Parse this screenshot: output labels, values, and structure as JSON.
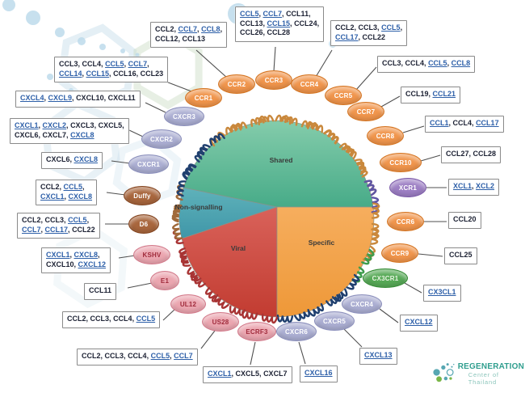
{
  "pie": {
    "sections": [
      {
        "id": "shared",
        "label": "Shared",
        "color_top": "#84ccab",
        "color_bottom": "#47ab88"
      },
      {
        "id": "non_signalling",
        "label": "Non-signalling",
        "color_top": "#5fb2ba",
        "color_bottom": "#3f96a8"
      },
      {
        "id": "viral",
        "label": "Viral",
        "color_top": "#d9625a",
        "color_bottom": "#c23c31"
      },
      {
        "id": "specific",
        "label": "Specific",
        "color_top": "#f6ae5e",
        "color_bottom": "#ee9838"
      }
    ],
    "label_color": "#3a3a3a"
  },
  "families": {
    "cc": {
      "coil": "#c9883c",
      "fill": "#f0954c",
      "stroke": "#d4731f",
      "text": "#ffffff"
    },
    "cxc": {
      "coil": "#20406f",
      "fill": "#abaed2",
      "stroke": "#8b8fbc",
      "text": "#ffffff"
    },
    "xc": {
      "coil": "#5f55a5",
      "fill": "#9d7fc4",
      "stroke": "#7b59a9",
      "text": "#ffffff"
    },
    "cx3c": {
      "coil": "#3e9c4c",
      "fill": "#57a957",
      "stroke": "#338b33",
      "text": "#e9f5e3"
    },
    "atypical": {
      "coil": "#a06a3a",
      "fill": "#a8663d",
      "stroke": "#83441f",
      "text": "#ffffff"
    },
    "viral": {
      "coil": "#a83434",
      "fill": "#eba6b0",
      "stroke": "#d2798a",
      "text": "#a02c3c"
    }
  },
  "link_color": "#2d5fa8",
  "receptors": [
    {
      "id": "ccr1",
      "label": "CCR1",
      "family": "cc",
      "rows": [
        [
          {
            "n": "CCL3",
            "u": 0
          },
          {
            "n": "CCL4",
            "u": 0
          },
          {
            "n": "CCL5",
            "u": 1
          },
          {
            "n": "CCL7",
            "u": 1
          }
        ],
        [
          {
            "n": "CCL14",
            "u": 1
          },
          {
            "n": "CCL15",
            "u": 1
          },
          {
            "n": "CCL16",
            "u": 0
          },
          {
            "n": "CCL23",
            "u": 0
          }
        ]
      ]
    },
    {
      "id": "ccr2",
      "label": "CCR2",
      "family": "cc",
      "rows": [
        [
          {
            "n": "CCL2",
            "u": 0
          },
          {
            "n": "CCL7",
            "u": 1
          },
          {
            "n": "CCL8",
            "u": 1
          }
        ],
        [
          {
            "n": "CCL12",
            "u": 0
          },
          {
            "n": "CCL13",
            "u": 0
          }
        ]
      ]
    },
    {
      "id": "ccr3",
      "label": "CCR3",
      "family": "cc",
      "rows": [
        [
          {
            "n": "CCL5",
            "u": 1
          },
          {
            "n": "CCL7",
            "u": 1
          },
          {
            "n": "CCL11",
            "u": 0
          }
        ],
        [
          {
            "n": "CCL13",
            "u": 0
          },
          {
            "n": "CCL15",
            "u": 1
          },
          {
            "n": "CCL24",
            "u": 0
          }
        ],
        [
          {
            "n": "CCL26",
            "u": 0
          },
          {
            "n": "CCL28",
            "u": 0
          }
        ]
      ]
    },
    {
      "id": "ccr4",
      "label": "CCR4",
      "family": "cc",
      "rows": [
        [
          {
            "n": "CCL2",
            "u": 0
          },
          {
            "n": "CCL3",
            "u": 0
          },
          {
            "n": "CCL5",
            "u": 1
          }
        ],
        [
          {
            "n": "CCL17",
            "u": 1
          },
          {
            "n": "CCL22",
            "u": 0
          }
        ]
      ]
    },
    {
      "id": "ccr5",
      "label": "CCR5",
      "family": "cc",
      "rows": [
        [
          {
            "n": "CCL3",
            "u": 0
          },
          {
            "n": "CCL4",
            "u": 0
          },
          {
            "n": "CCL5",
            "u": 1
          },
          {
            "n": "CCL8",
            "u": 1
          }
        ]
      ]
    },
    {
      "id": "ccr7",
      "label": "CCR7",
      "family": "cc",
      "rows": [
        [
          {
            "n": "CCL19",
            "u": 0
          },
          {
            "n": "CCL21",
            "u": 1
          }
        ]
      ]
    },
    {
      "id": "ccr8",
      "label": "CCR8",
      "family": "cc",
      "rows": [
        [
          {
            "n": "CCL1",
            "u": 1
          },
          {
            "n": "CCL4",
            "u": 0
          },
          {
            "n": "CCL17",
            "u": 1
          }
        ]
      ]
    },
    {
      "id": "ccr10",
      "label": "CCR10",
      "family": "cc",
      "rows": [
        [
          {
            "n": "CCL27",
            "u": 0
          },
          {
            "n": "CCL28",
            "u": 0
          }
        ]
      ]
    },
    {
      "id": "xcr1",
      "label": "XCR1",
      "family": "xc",
      "rows": [
        [
          {
            "n": "XCL1",
            "u": 1
          },
          {
            "n": "XCL2",
            "u": 1
          }
        ]
      ]
    },
    {
      "id": "ccr6",
      "label": "CCR6",
      "family": "cc",
      "rows": [
        [
          {
            "n": "CCL20",
            "u": 0
          }
        ]
      ]
    },
    {
      "id": "ccr9",
      "label": "CCR9",
      "family": "cc",
      "rows": [
        [
          {
            "n": "CCL25",
            "u": 0
          }
        ]
      ]
    },
    {
      "id": "cx3cr1",
      "label": "CX3CR1",
      "family": "cx3c",
      "rows": [
        [
          {
            "n": "CX3CL1",
            "u": 1
          }
        ]
      ]
    },
    {
      "id": "cxcr4",
      "label": "CXCR4",
      "family": "cxc",
      "rows": [
        [
          {
            "n": "CXCL12",
            "u": 1
          }
        ]
      ]
    },
    {
      "id": "cxcr5",
      "label": "CXCR5",
      "family": "cxc",
      "rows": [
        [
          {
            "n": "CXCL13",
            "u": 1
          }
        ]
      ]
    },
    {
      "id": "cxcr6",
      "label": "CXCR6",
      "family": "cxc",
      "rows": [
        [
          {
            "n": "CXCL16",
            "u": 1
          }
        ]
      ]
    },
    {
      "id": "ecrf3",
      "label": "ECRF3",
      "family": "viral",
      "rows": [
        [
          {
            "n": "CXCL1",
            "u": 1
          },
          {
            "n": "CXCL5",
            "u": 0
          },
          {
            "n": "CXCL7",
            "u": 0
          }
        ]
      ]
    },
    {
      "id": "us28",
      "label": "US28",
      "family": "viral",
      "rows": [
        [
          {
            "n": "CCL2",
            "u": 0
          },
          {
            "n": "CCL3",
            "u": 0
          },
          {
            "n": "CCL4",
            "u": 0
          },
          {
            "n": "CCL5",
            "u": 1
          },
          {
            "n": "CCL7",
            "u": 1
          }
        ]
      ]
    },
    {
      "id": "ul12",
      "label": "UL12",
      "family": "viral",
      "rows": [
        [
          {
            "n": "CCL2",
            "u": 0
          },
          {
            "n": "CCL3",
            "u": 0
          },
          {
            "n": "CCL4",
            "u": 0
          },
          {
            "n": "CCL5",
            "u": 1
          }
        ]
      ]
    },
    {
      "id": "e1",
      "label": "E1",
      "family": "viral",
      "rows": [
        [
          {
            "n": "CCL11",
            "u": 0
          }
        ]
      ]
    },
    {
      "id": "kshv",
      "label": "KSHV",
      "family": "viral",
      "rows": [
        [
          {
            "n": "CXCL1",
            "u": 1
          },
          {
            "n": "CXCL8",
            "u": 1
          }
        ],
        [
          {
            "n": "CXCL10",
            "u": 0
          },
          {
            "n": "CXCL12",
            "u": 1
          }
        ]
      ]
    },
    {
      "id": "d6",
      "label": "D6",
      "family": "atypical",
      "rows": [
        [
          {
            "n": "CCL2",
            "u": 0
          },
          {
            "n": "CCL3",
            "u": 0
          },
          {
            "n": "CCL5",
            "u": 1
          }
        ],
        [
          {
            "n": "CCL7",
            "u": 1
          },
          {
            "n": "CCL17",
            "u": 1
          },
          {
            "n": "CCL22",
            "u": 0
          }
        ]
      ]
    },
    {
      "id": "duffy",
      "label": "Duffy",
      "family": "atypical",
      "rows": [
        [
          {
            "n": "CCL2",
            "u": 0
          },
          {
            "n": "CCL5",
            "u": 1
          }
        ],
        [
          {
            "n": "CXCL1",
            "u": 1
          },
          {
            "n": "CXCL8",
            "u": 1
          }
        ]
      ]
    },
    {
      "id": "cxcr1",
      "label": "CXCR1",
      "family": "cxc",
      "rows": [
        [
          {
            "n": "CXCL6",
            "u": 0
          },
          {
            "n": "CXCL8",
            "u": 1
          }
        ]
      ]
    },
    {
      "id": "cxcr2",
      "label": "CXCR2",
      "family": "cxc",
      "rows": [
        [
          {
            "n": "CXCL1",
            "u": 1
          },
          {
            "n": "CXCL2",
            "u": 1
          },
          {
            "n": "CXCL3",
            "u": 0
          },
          {
            "n": "CXCL5",
            "u": 0
          }
        ],
        [
          {
            "n": "CXCL6",
            "u": 0
          },
          {
            "n": "CXCL7",
            "u": 0
          },
          {
            "n": "CXCL8",
            "u": 1
          }
        ]
      ]
    },
    {
      "id": "cxcr3",
      "label": "CXCR3",
      "family": "cxc",
      "rows": [
        [
          {
            "n": "CXCL4",
            "u": 1
          },
          {
            "n": "CXCL9",
            "u": 1
          },
          {
            "n": "CXCL10",
            "u": 0
          },
          {
            "n": "CXCL11",
            "u": 0
          }
        ]
      ]
    }
  ],
  "logo": {
    "line1": "REGENERATION",
    "line2": "Center of Thailand",
    "color1": "#2f9e8e",
    "color2": "#8cc6bc",
    "dot_teal": "#57a7b2",
    "dot_green": "#7ab648"
  }
}
